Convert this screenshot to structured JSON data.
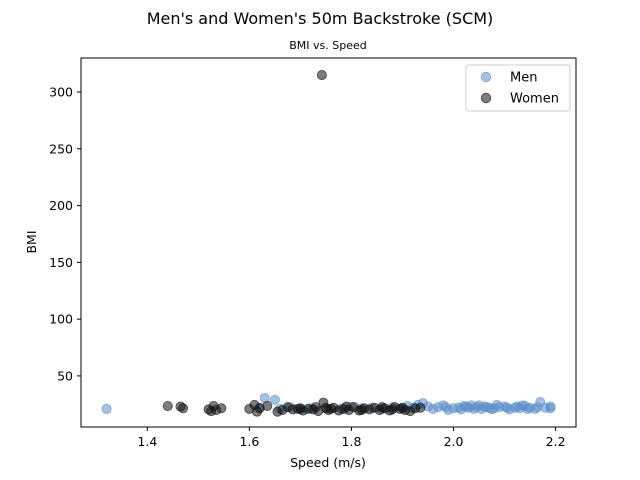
{
  "figure": {
    "title": "Men's and Women's 50m Backstroke (SCM)"
  },
  "chart_data": {
    "type": "scatter",
    "title": "BMI vs. Speed",
    "xlabel": "Speed (m/s)",
    "ylabel": "BMI",
    "xlim": [
      1.27,
      2.24
    ],
    "ylim": [
      5,
      330
    ],
    "xticks": [
      "1.4",
      "1.6",
      "1.8",
      "2.0",
      "2.2"
    ],
    "yticks": [
      "50",
      "100",
      "150",
      "200",
      "250",
      "300"
    ],
    "grid": false,
    "legend_position": "top-right",
    "series": [
      {
        "name": "Men",
        "color": "#5b8fc9",
        "opacity": 0.55,
        "points": [
          [
            1.32,
            21.0
          ],
          [
            1.63,
            30.5
          ],
          [
            1.65,
            29.0
          ],
          [
            1.62,
            22.0
          ],
          [
            1.66,
            21.0
          ],
          [
            1.68,
            22.5
          ],
          [
            1.7,
            20.5
          ],
          [
            1.72,
            21.5
          ],
          [
            1.75,
            22.0
          ],
          [
            1.78,
            21.0
          ],
          [
            1.8,
            23.0
          ],
          [
            1.82,
            21.5
          ],
          [
            1.84,
            22.0
          ],
          [
            1.86,
            21.0
          ],
          [
            1.88,
            22.5
          ],
          [
            1.9,
            21.5
          ],
          [
            1.91,
            23.5
          ],
          [
            1.92,
            22.0
          ],
          [
            1.93,
            24.5
          ],
          [
            1.94,
            26.0
          ],
          [
            1.95,
            23.0
          ],
          [
            1.96,
            21.0
          ],
          [
            1.97,
            22.5
          ],
          [
            1.98,
            24.0
          ],
          [
            1.99,
            20.0
          ],
          [
            2.0,
            21.5
          ],
          [
            2.01,
            22.0
          ],
          [
            2.02,
            23.5
          ],
          [
            2.03,
            22.0
          ],
          [
            2.04,
            21.0
          ],
          [
            2.05,
            24.0
          ],
          [
            2.06,
            23.0
          ],
          [
            2.07,
            22.0
          ],
          [
            2.08,
            21.5
          ],
          [
            2.09,
            22.5
          ],
          [
            2.1,
            23.0
          ],
          [
            2.11,
            20.5
          ],
          [
            2.12,
            22.0
          ],
          [
            2.13,
            21.5
          ],
          [
            2.14,
            23.5
          ],
          [
            2.15,
            22.0
          ],
          [
            2.16,
            21.0
          ],
          [
            2.17,
            27.0
          ],
          [
            2.18,
            22.0
          ],
          [
            2.19,
            23.0
          ],
          [
            2.19,
            21.5
          ],
          [
            2.045,
            22.5
          ],
          [
            2.055,
            21.0
          ],
          [
            2.025,
            23.0
          ],
          [
            2.085,
            24.5
          ],
          [
            2.125,
            23.0
          ],
          [
            2.145,
            21.0
          ],
          [
            1.985,
            22.5
          ],
          [
            2.015,
            20.5
          ],
          [
            2.035,
            24.0
          ],
          [
            2.065,
            22.5
          ],
          [
            2.075,
            20.5
          ],
          [
            2.105,
            22.0
          ],
          [
            2.135,
            24.0
          ],
          [
            2.165,
            22.5
          ]
        ]
      },
      {
        "name": "Women",
        "color": "#111111",
        "opacity": 0.55,
        "points": [
          [
            1.44,
            23.5
          ],
          [
            1.465,
            23.0
          ],
          [
            1.47,
            21.5
          ],
          [
            1.52,
            20.5
          ],
          [
            1.53,
            23.5
          ],
          [
            1.525,
            19.0
          ],
          [
            1.535,
            20.0
          ],
          [
            1.545,
            21.5
          ],
          [
            1.6,
            21.0
          ],
          [
            1.61,
            24.5
          ],
          [
            1.615,
            18.5
          ],
          [
            1.62,
            21.5
          ],
          [
            1.635,
            23.5
          ],
          [
            1.655,
            18.5
          ],
          [
            1.665,
            20.0
          ],
          [
            1.675,
            22.5
          ],
          [
            1.685,
            20.5
          ],
          [
            1.695,
            21.0
          ],
          [
            1.705,
            19.5
          ],
          [
            1.715,
            21.0
          ],
          [
            1.725,
            20.5
          ],
          [
            1.735,
            19.0
          ],
          [
            1.742,
            315.0
          ],
          [
            1.745,
            26.5
          ],
          [
            1.75,
            21.5
          ],
          [
            1.755,
            20.0
          ],
          [
            1.765,
            22.0
          ],
          [
            1.775,
            19.5
          ],
          [
            1.785,
            21.0
          ],
          [
            1.795,
            20.0
          ],
          [
            1.805,
            22.5
          ],
          [
            1.815,
            19.5
          ],
          [
            1.825,
            21.5
          ],
          [
            1.835,
            20.5
          ],
          [
            1.845,
            22.0
          ],
          [
            1.855,
            20.0
          ],
          [
            1.865,
            21.5
          ],
          [
            1.875,
            19.5
          ],
          [
            1.885,
            22.5
          ],
          [
            1.895,
            21.0
          ],
          [
            1.905,
            20.0
          ],
          [
            1.915,
            19.0
          ],
          [
            1.925,
            21.5
          ],
          [
            1.935,
            22.0
          ],
          [
            1.76,
            21.0
          ],
          [
            1.79,
            23.0
          ],
          [
            1.82,
            20.0
          ],
          [
            1.86,
            22.5
          ],
          [
            1.7,
            21.5
          ],
          [
            1.73,
            22.5
          ],
          [
            1.88,
            20.5
          ],
          [
            1.9,
            22.0
          ]
        ]
      }
    ]
  }
}
